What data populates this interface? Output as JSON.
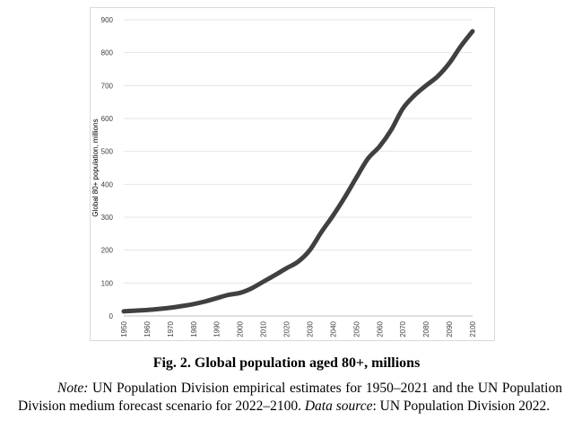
{
  "chart_data": {
    "type": "line",
    "ylabel": "Global 80+ population, millions",
    "xlabel": "",
    "ylim": [
      0,
      900
    ],
    "xlim": [
      1950,
      2100
    ],
    "y_ticks": [
      "0",
      "100",
      "200",
      "300",
      "400",
      "500",
      "600",
      "700",
      "800",
      "900"
    ],
    "x_ticks": [
      "1950",
      "1960",
      "1970",
      "1980",
      "1990",
      "2000",
      "2010",
      "2020",
      "2030",
      "2040",
      "2050",
      "2060",
      "2070",
      "2080",
      "2090",
      "2100"
    ],
    "grid": "horizontal",
    "line_color": "#404040",
    "series": [
      {
        "x": [
          1950,
          1955,
          1960,
          1965,
          1970,
          1975,
          1980,
          1985,
          1990,
          1995,
          2000,
          2005,
          2010,
          2015,
          2020,
          2025,
          2030,
          2035,
          2040,
          2045,
          2050,
          2055,
          2060,
          2065,
          2070,
          2075,
          2080,
          2085,
          2090,
          2095,
          2100
        ],
        "y": [
          14,
          16,
          18,
          21,
          25,
          30,
          36,
          44,
          54,
          64,
          70,
          84,
          104,
          124,
          145,
          165,
          200,
          255,
          305,
          360,
          420,
          478,
          515,
          565,
          630,
          670,
          700,
          728,
          768,
          820,
          865
        ]
      }
    ]
  },
  "caption": "Fig. 2. Global population aged 80+, millions",
  "note": {
    "label": "Note:",
    "text1": " UN Population Division empirical estimates for 1950–2021 and the UN Population Division medium forecast scenario for 2022–2100. ",
    "source_label": "Data source",
    "text2": ": UN Population Division 2022."
  }
}
